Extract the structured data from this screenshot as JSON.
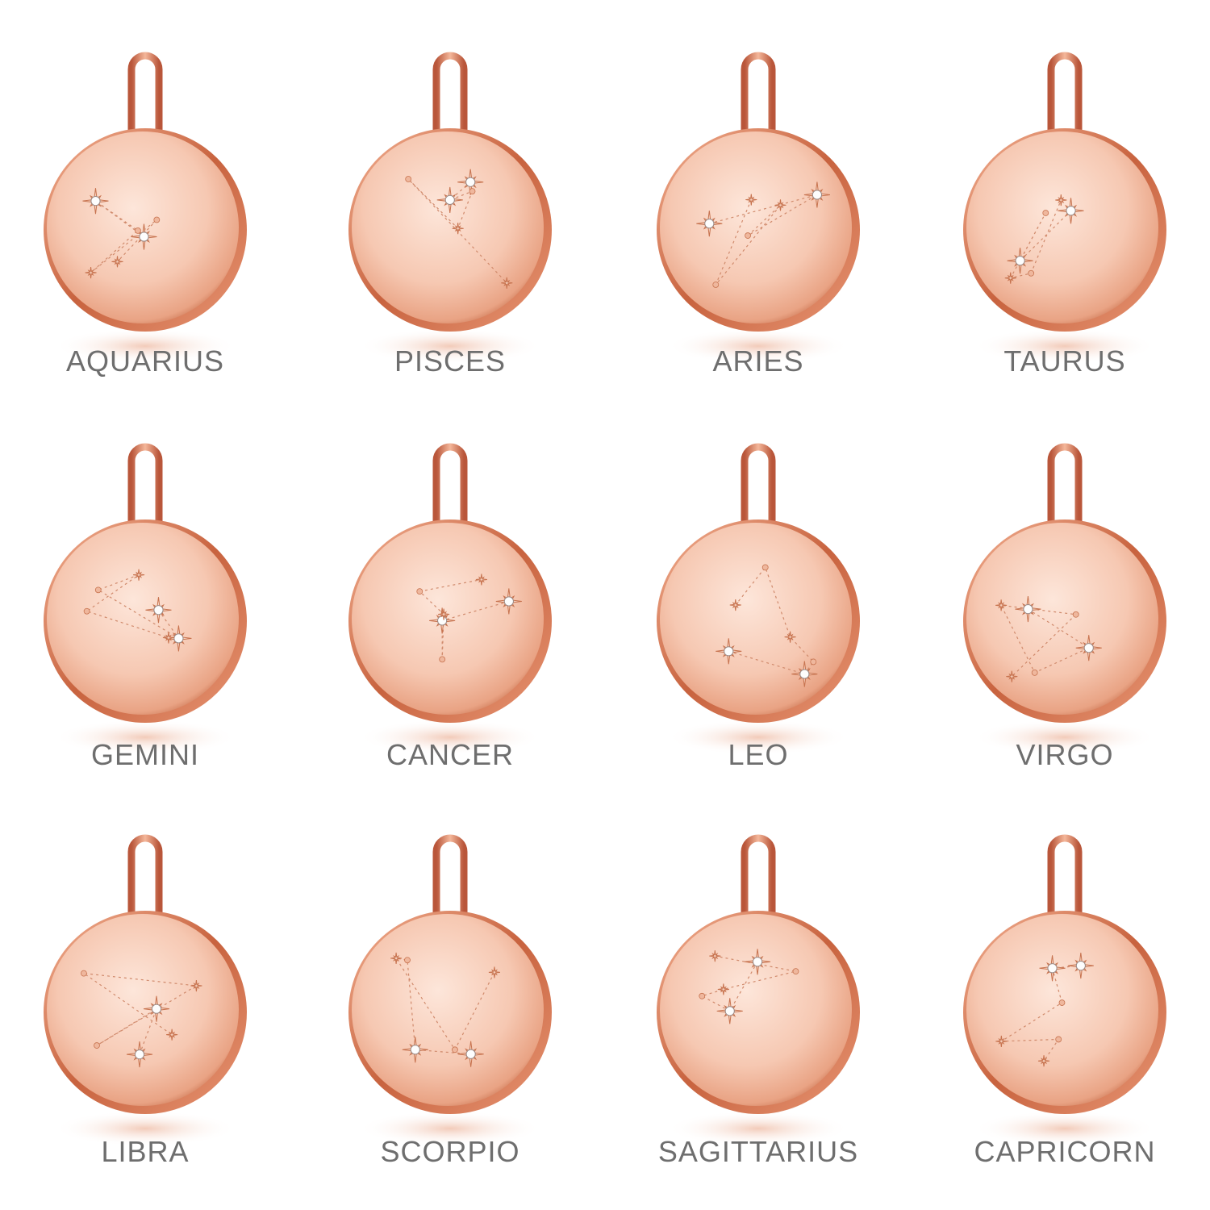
{
  "pendants": [
    {
      "label": "AQUARIUS"
    },
    {
      "label": "PISCES"
    },
    {
      "label": "ARIES"
    },
    {
      "label": "TAURUS"
    },
    {
      "label": "GEMINI"
    },
    {
      "label": "CANCER"
    },
    {
      "label": "LEO"
    },
    {
      "label": "VIRGO"
    },
    {
      "label": "LIBRA"
    },
    {
      "label": "SCORPIO"
    },
    {
      "label": "SAGITTARIUS"
    },
    {
      "label": "CAPRICORN"
    }
  ]
}
